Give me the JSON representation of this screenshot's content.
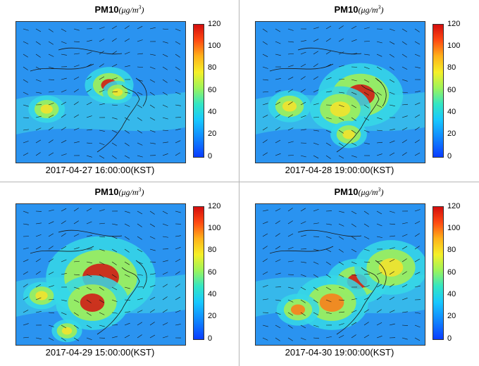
{
  "panels": [
    {
      "title": "PM10",
      "unit": "μg/m",
      "unit_sup": "3",
      "timestamp": "2017-04-27 16:00:00(KST)",
      "hotspots": [
        [
          0.55,
          0.45,
          0.08,
          0.9
        ],
        [
          0.18,
          0.62,
          0.06,
          0.7
        ],
        [
          0.6,
          0.5,
          0.05,
          0.6
        ]
      ]
    },
    {
      "title": "PM10",
      "unit": "μg/m",
      "unit_sup": "3",
      "timestamp": "2017-04-28 19:00:00(KST)",
      "hotspots": [
        [
          0.62,
          0.52,
          0.14,
          1.0
        ],
        [
          0.5,
          0.62,
          0.1,
          0.7
        ],
        [
          0.2,
          0.6,
          0.07,
          0.6
        ],
        [
          0.55,
          0.8,
          0.06,
          0.6
        ]
      ]
    },
    {
      "title": "PM10",
      "unit": "μg/m",
      "unit_sup": "3",
      "timestamp": "2017-04-29 15:00:00(KST)",
      "hotspots": [
        [
          0.5,
          0.52,
          0.18,
          1.0
        ],
        [
          0.45,
          0.7,
          0.12,
          0.9
        ],
        [
          0.15,
          0.65,
          0.06,
          0.6
        ],
        [
          0.3,
          0.9,
          0.05,
          0.6
        ]
      ]
    },
    {
      "title": "PM10",
      "unit": "μg/m",
      "unit_sup": "3",
      "timestamp": "2017-04-30 19:00:00(KST)",
      "hotspots": [
        [
          0.6,
          0.55,
          0.1,
          0.9
        ],
        [
          0.45,
          0.7,
          0.12,
          0.8
        ],
        [
          0.25,
          0.75,
          0.07,
          0.8
        ],
        [
          0.8,
          0.45,
          0.12,
          0.6
        ]
      ]
    }
  ],
  "colorbar": {
    "ticks": [
      "120",
      "100",
      "80",
      "60",
      "40",
      "20",
      "0"
    ]
  }
}
